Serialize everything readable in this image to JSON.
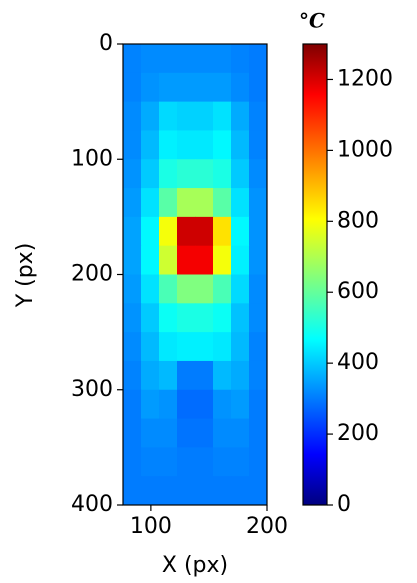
{
  "chart_data": {
    "type": "heatmap",
    "colormap": "jet",
    "xlabel": "X (px)",
    "ylabel": "Y (px)",
    "colorbar_label": "°C",
    "xlim": [
      76,
      200
    ],
    "ylim": [
      400,
      0
    ],
    "xticks": [
      100,
      200
    ],
    "yticks": [
      0,
      100,
      200,
      300,
      400
    ],
    "clim": [
      0,
      1300
    ],
    "cticks": [
      0,
      200,
      400,
      600,
      800,
      1000,
      1200
    ],
    "xbins": [
      76,
      91.5,
      107,
      122.5,
      138,
      153.5,
      169,
      184.5,
      200
    ],
    "ybins": [
      0,
      25,
      50,
      75,
      100,
      125,
      150,
      175,
      200,
      225,
      250,
      275,
      300,
      325,
      350,
      375,
      400
    ],
    "z": [
      [
        330,
        340,
        340,
        340,
        340,
        340,
        330,
        320
      ],
      [
        330,
        350,
        360,
        360,
        360,
        360,
        340,
        320
      ],
      [
        340,
        380,
        440,
        430,
        430,
        450,
        380,
        330
      ],
      [
        340,
        400,
        470,
        460,
        460,
        480,
        400,
        330
      ],
      [
        350,
        420,
        520,
        540,
        540,
        520,
        420,
        340
      ],
      [
        360,
        450,
        600,
        700,
        700,
        600,
        450,
        350
      ],
      [
        370,
        480,
        800,
        1200,
        1200,
        850,
        480,
        350
      ],
      [
        370,
        480,
        750,
        1150,
        1150,
        800,
        470,
        350
      ],
      [
        360,
        450,
        580,
        650,
        650,
        580,
        440,
        340
      ],
      [
        350,
        420,
        500,
        520,
        520,
        500,
        410,
        340
      ],
      [
        340,
        400,
        460,
        470,
        470,
        460,
        400,
        330
      ],
      [
        330,
        380,
        400,
        320,
        320,
        400,
        380,
        330
      ],
      [
        320,
        360,
        350,
        300,
        300,
        350,
        360,
        320
      ],
      [
        320,
        340,
        340,
        310,
        310,
        340,
        340,
        320
      ],
      [
        320,
        330,
        330,
        320,
        320,
        330,
        330,
        320
      ],
      [
        320,
        320,
        320,
        320,
        320,
        320,
        320,
        320
      ]
    ]
  }
}
